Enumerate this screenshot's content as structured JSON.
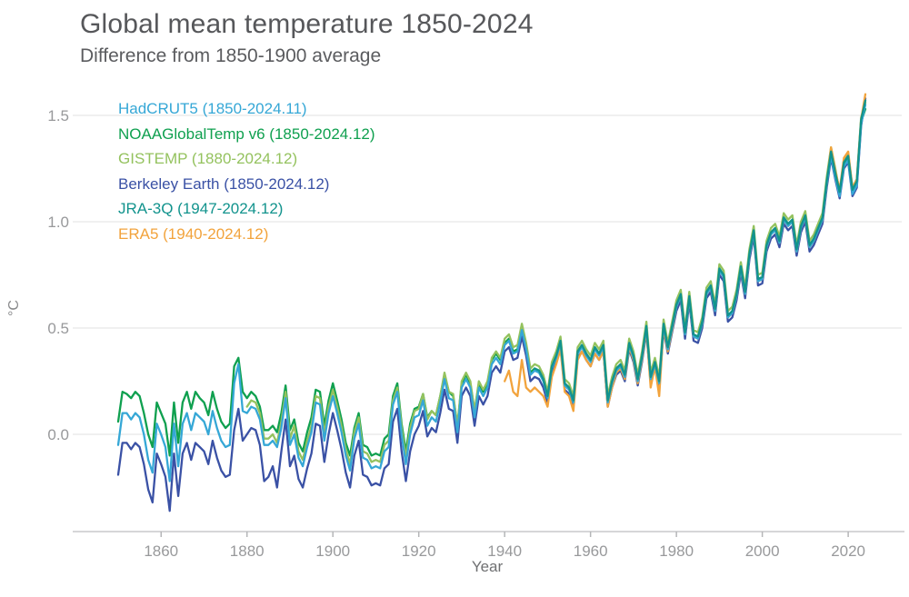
{
  "page": {
    "background": "#ffffff"
  },
  "chart_data": {
    "type": "line",
    "title": "Global mean temperature 1850-2024",
    "subtitle": "Difference from 1850-1900 average",
    "xlabel": "Year",
    "ylabel": "°C",
    "xlim": [
      1850,
      2024
    ],
    "ylim": [
      -0.46,
      1.66
    ],
    "x_ticks": [
      1860,
      1880,
      1900,
      1920,
      1940,
      1960,
      1980,
      2000,
      2020
    ],
    "y_ticks": [
      {
        "value": 0.0,
        "label": "0.0"
      },
      {
        "value": 0.5,
        "label": "0.5"
      },
      {
        "value": 1.0,
        "label": "1.0"
      },
      {
        "value": 1.5,
        "label": "1.5"
      }
    ],
    "grid": "horizontal-only",
    "legend_position": "top-left-inside",
    "draw_order": [
      "noaa",
      "gistemp",
      "berkeley",
      "era5",
      "hadcrut5",
      "jra3q"
    ],
    "series": [
      {
        "name": "hadcrut5",
        "label": "HadCRUT5 (1850-2024.11)",
        "color": "#35a7d6",
        "start_year": 1850,
        "values": [
          -0.05,
          0.1,
          0.1,
          0.07,
          0.1,
          0.08,
          0.0,
          -0.12,
          -0.18,
          0.05,
          0.0,
          -0.06,
          -0.22,
          0.05,
          -0.15,
          0.05,
          0.1,
          0.02,
          0.1,
          0.08,
          0.06,
          0.0,
          0.11,
          0.03,
          -0.03,
          -0.06,
          -0.05,
          0.24,
          0.33,
          0.11,
          0.1,
          0.13,
          0.12,
          0.07,
          -0.05,
          -0.05,
          -0.03,
          -0.06,
          0.03,
          0.17,
          -0.05,
          0.0,
          -0.11,
          -0.15,
          -0.06,
          0.01,
          0.15,
          0.14,
          -0.03,
          0.1,
          0.18,
          0.1,
          0.01,
          -0.1,
          -0.17,
          -0.02,
          0.05,
          -0.11,
          -0.12,
          -0.16,
          -0.15,
          -0.16,
          -0.08,
          -0.06,
          0.14,
          0.2,
          0.0,
          -0.14,
          0.0,
          0.08,
          0.09,
          0.16,
          0.04,
          0.08,
          0.06,
          0.15,
          0.26,
          0.17,
          0.16,
          0.01,
          0.22,
          0.26,
          0.22,
          0.08,
          0.22,
          0.18,
          0.22,
          0.33,
          0.36,
          0.33,
          0.42,
          0.44,
          0.38,
          0.39,
          0.49,
          0.4,
          0.28,
          0.3,
          0.29,
          0.25,
          0.17,
          0.31,
          0.36,
          0.43,
          0.23,
          0.21,
          0.15,
          0.38,
          0.41,
          0.37,
          0.34,
          0.4,
          0.37,
          0.41,
          0.15,
          0.24,
          0.3,
          0.32,
          0.27,
          0.42,
          0.36,
          0.25,
          0.36,
          0.5,
          0.26,
          0.33,
          0.24,
          0.51,
          0.4,
          0.5,
          0.6,
          0.65,
          0.47,
          0.64,
          0.46,
          0.45,
          0.52,
          0.66,
          0.69,
          0.58,
          0.77,
          0.74,
          0.55,
          0.57,
          0.65,
          0.78,
          0.66,
          0.84,
          0.95,
          0.72,
          0.73,
          0.88,
          0.94,
          0.96,
          0.9,
          1.01,
          0.98,
          1.0,
          0.86,
          0.97,
          1.02,
          0.88,
          0.91,
          0.96,
          1.01,
          1.18,
          1.31,
          1.21,
          1.12,
          1.26,
          1.29,
          1.13,
          1.17,
          1.46,
          1.55
        ]
      },
      {
        "name": "noaa",
        "label": "NOAAGlobalTemp v6 (1850-2024.12)",
        "color": "#0fa04f",
        "start_year": 1850,
        "values": [
          0.06,
          0.2,
          0.19,
          0.17,
          0.2,
          0.18,
          0.1,
          0.0,
          -0.06,
          0.15,
          0.1,
          0.05,
          -0.1,
          0.15,
          -0.04,
          0.15,
          0.2,
          0.12,
          0.2,
          0.17,
          0.15,
          0.09,
          0.2,
          0.12,
          0.06,
          0.03,
          0.05,
          0.32,
          0.36,
          0.2,
          0.17,
          0.2,
          0.18,
          0.13,
          0.02,
          0.02,
          0.04,
          0.01,
          0.1,
          0.23,
          0.02,
          0.07,
          -0.04,
          -0.08,
          0.01,
          0.08,
          0.21,
          0.2,
          0.04,
          0.16,
          0.24,
          0.16,
          0.07,
          -0.04,
          -0.1,
          0.03,
          0.1,
          -0.05,
          -0.06,
          -0.1,
          -0.09,
          -0.1,
          -0.02,
          0.0,
          0.18,
          0.24,
          0.05,
          -0.08,
          0.05,
          0.12,
          0.13,
          0.19,
          0.08,
          0.11,
          0.09,
          0.18,
          0.28,
          0.2,
          0.18,
          0.04,
          0.24,
          0.28,
          0.24,
          0.11,
          0.24,
          0.2,
          0.24,
          0.35,
          0.38,
          0.35,
          0.43,
          0.45,
          0.39,
          0.4,
          0.5,
          0.41,
          0.29,
          0.31,
          0.3,
          0.26,
          0.18,
          0.32,
          0.37,
          0.44,
          0.24,
          0.22,
          0.16,
          0.39,
          0.42,
          0.38,
          0.35,
          0.41,
          0.38,
          0.42,
          0.16,
          0.25,
          0.31,
          0.33,
          0.28,
          0.43,
          0.37,
          0.26,
          0.37,
          0.51,
          0.27,
          0.34,
          0.25,
          0.52,
          0.41,
          0.51,
          0.61,
          0.66,
          0.48,
          0.65,
          0.47,
          0.46,
          0.53,
          0.67,
          0.7,
          0.59,
          0.78,
          0.75,
          0.56,
          0.58,
          0.66,
          0.79,
          0.67,
          0.85,
          0.96,
          0.73,
          0.74,
          0.89,
          0.95,
          0.97,
          0.91,
          1.02,
          0.99,
          1.01,
          0.87,
          0.98,
          1.03,
          0.89,
          0.92,
          0.97,
          1.02,
          1.19,
          1.32,
          1.22,
          1.13,
          1.27,
          1.3,
          1.14,
          1.18,
          1.47,
          1.53
        ]
      },
      {
        "name": "gistemp",
        "label": "GISTEMP (1880-2024.12)",
        "color": "#94c25e",
        "start_year": 1880,
        "values": [
          0.13,
          0.16,
          0.15,
          0.1,
          -0.02,
          -0.02,
          0.0,
          -0.04,
          0.06,
          0.2,
          -0.02,
          0.04,
          -0.08,
          -0.12,
          -0.03,
          0.04,
          0.18,
          0.17,
          0.0,
          0.13,
          0.21,
          0.13,
          0.04,
          -0.07,
          -0.14,
          0.01,
          0.08,
          -0.08,
          -0.09,
          -0.13,
          -0.12,
          -0.13,
          -0.05,
          -0.03,
          0.16,
          0.22,
          0.03,
          -0.11,
          0.03,
          0.11,
          0.12,
          0.19,
          0.07,
          0.11,
          0.09,
          0.18,
          0.29,
          0.2,
          0.19,
          0.04,
          0.25,
          0.29,
          0.25,
          0.11,
          0.25,
          0.21,
          0.25,
          0.36,
          0.39,
          0.36,
          0.45,
          0.47,
          0.41,
          0.42,
          0.52,
          0.43,
          0.31,
          0.33,
          0.32,
          0.28,
          0.2,
          0.34,
          0.39,
          0.46,
          0.26,
          0.24,
          0.18,
          0.41,
          0.44,
          0.4,
          0.37,
          0.43,
          0.4,
          0.44,
          0.18,
          0.27,
          0.33,
          0.35,
          0.3,
          0.45,
          0.39,
          0.28,
          0.39,
          0.53,
          0.29,
          0.36,
          0.27,
          0.54,
          0.43,
          0.53,
          0.63,
          0.68,
          0.5,
          0.67,
          0.49,
          0.48,
          0.55,
          0.69,
          0.72,
          0.61,
          0.8,
          0.77,
          0.58,
          0.6,
          0.68,
          0.81,
          0.69,
          0.87,
          0.98,
          0.75,
          0.76,
          0.91,
          0.97,
          0.99,
          0.93,
          1.04,
          1.01,
          1.03,
          0.89,
          1.0,
          1.05,
          0.91,
          0.94,
          0.99,
          1.04,
          1.21,
          1.35,
          1.25,
          1.14,
          1.29,
          1.32,
          1.16,
          1.2,
          1.49,
          1.56
        ]
      },
      {
        "name": "berkeley",
        "label": "Berkeley Earth (1850-2024.12)",
        "color": "#3a51a5",
        "start_year": 1850,
        "values": [
          -0.19,
          -0.04,
          -0.04,
          -0.07,
          -0.04,
          -0.06,
          -0.14,
          -0.26,
          -0.32,
          -0.09,
          -0.14,
          -0.2,
          -0.36,
          -0.09,
          -0.29,
          -0.09,
          -0.04,
          -0.12,
          -0.04,
          -0.06,
          -0.08,
          -0.14,
          -0.03,
          -0.11,
          -0.17,
          -0.2,
          -0.19,
          0.02,
          0.12,
          -0.03,
          0.0,
          0.03,
          0.02,
          -0.05,
          -0.22,
          -0.2,
          -0.15,
          -0.25,
          -0.08,
          0.07,
          -0.15,
          -0.1,
          -0.21,
          -0.25,
          -0.16,
          -0.09,
          0.05,
          0.04,
          -0.13,
          0.0,
          0.1,
          0.02,
          -0.07,
          -0.18,
          -0.25,
          -0.1,
          -0.03,
          -0.19,
          -0.2,
          -0.24,
          -0.23,
          -0.24,
          -0.16,
          -0.14,
          0.06,
          0.12,
          -0.08,
          -0.22,
          -0.08,
          0.0,
          0.04,
          0.11,
          -0.01,
          0.03,
          0.01,
          0.1,
          0.21,
          0.12,
          0.11,
          -0.04,
          0.18,
          0.22,
          0.18,
          0.04,
          0.18,
          0.14,
          0.18,
          0.29,
          0.32,
          0.29,
          0.39,
          0.41,
          0.35,
          0.36,
          0.46,
          0.37,
          0.25,
          0.27,
          0.26,
          0.22,
          0.15,
          0.29,
          0.34,
          0.41,
          0.21,
          0.19,
          0.13,
          0.36,
          0.39,
          0.35,
          0.32,
          0.38,
          0.35,
          0.39,
          0.13,
          0.22,
          0.28,
          0.3,
          0.25,
          0.4,
          0.34,
          0.23,
          0.34,
          0.48,
          0.24,
          0.31,
          0.22,
          0.49,
          0.38,
          0.48,
          0.58,
          0.63,
          0.45,
          0.62,
          0.44,
          0.43,
          0.5,
          0.64,
          0.67,
          0.56,
          0.75,
          0.72,
          0.53,
          0.55,
          0.63,
          0.76,
          0.64,
          0.82,
          0.93,
          0.7,
          0.71,
          0.86,
          0.92,
          0.94,
          0.88,
          0.99,
          0.96,
          0.98,
          0.84,
          0.95,
          1.0,
          0.86,
          0.89,
          0.94,
          0.99,
          1.16,
          1.3,
          1.2,
          1.11,
          1.25,
          1.28,
          1.12,
          1.16,
          1.45,
          1.58
        ]
      },
      {
        "name": "jra3q",
        "label": "JRA-3Q (1947-2024.12)",
        "color": "#12938d",
        "start_year": 1947,
        "values": [
          0.31,
          0.3,
          0.26,
          0.18,
          0.32,
          0.37,
          0.44,
          0.24,
          0.22,
          0.16,
          0.39,
          0.42,
          0.38,
          0.35,
          0.41,
          0.38,
          0.42,
          0.16,
          0.25,
          0.31,
          0.33,
          0.28,
          0.43,
          0.37,
          0.26,
          0.37,
          0.51,
          0.27,
          0.34,
          0.25,
          0.52,
          0.41,
          0.51,
          0.61,
          0.66,
          0.48,
          0.65,
          0.47,
          0.46,
          0.53,
          0.67,
          0.7,
          0.59,
          0.78,
          0.75,
          0.56,
          0.58,
          0.66,
          0.79,
          0.67,
          0.85,
          0.96,
          0.73,
          0.74,
          0.89,
          0.95,
          0.97,
          0.91,
          1.02,
          0.99,
          1.01,
          0.87,
          0.98,
          1.03,
          0.89,
          0.92,
          0.97,
          1.02,
          1.19,
          1.33,
          1.23,
          1.14,
          1.28,
          1.31,
          1.15,
          1.19,
          1.48,
          1.57
        ]
      },
      {
        "name": "era5",
        "label": "ERA5 (1940-2024.12)",
        "color": "#f2a33c",
        "start_year": 1940,
        "values": [
          0.25,
          0.3,
          0.2,
          0.18,
          0.35,
          0.22,
          0.2,
          0.22,
          0.2,
          0.18,
          0.13,
          0.27,
          0.33,
          0.4,
          0.2,
          0.18,
          0.11,
          0.35,
          0.39,
          0.35,
          0.32,
          0.38,
          0.35,
          0.39,
          0.13,
          0.22,
          0.29,
          0.31,
          0.26,
          0.41,
          0.35,
          0.24,
          0.35,
          0.49,
          0.22,
          0.32,
          0.18,
          0.5,
          0.39,
          0.49,
          0.6,
          0.65,
          0.47,
          0.64,
          0.46,
          0.45,
          0.52,
          0.66,
          0.69,
          0.58,
          0.77,
          0.74,
          0.55,
          0.57,
          0.65,
          0.78,
          0.66,
          0.84,
          0.95,
          0.72,
          0.73,
          0.88,
          0.94,
          0.96,
          0.9,
          1.01,
          0.98,
          1.0,
          0.86,
          0.97,
          1.02,
          0.88,
          0.91,
          0.96,
          1.01,
          1.18,
          1.35,
          1.24,
          1.15,
          1.3,
          1.33,
          1.16,
          1.2,
          1.48,
          1.6
        ]
      }
    ],
    "style": {
      "grid_color": "#ececec",
      "axis_line_color": "#c8c9cb",
      "tick_mark_color": "#b5b6b8",
      "tick_label_color": "#98999b",
      "title_color": "#56575a",
      "subtitle_color": "#5b5c5f",
      "line_width": 2.3
    }
  }
}
